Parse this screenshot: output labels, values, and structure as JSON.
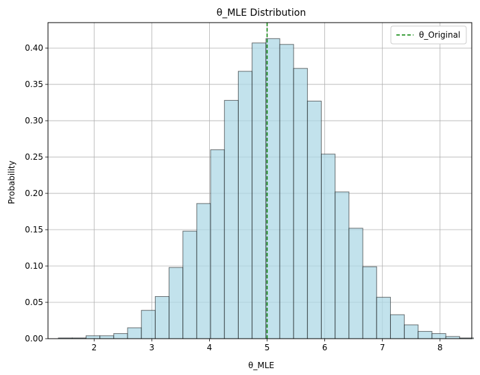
{
  "chart_data": {
    "type": "bar",
    "title": "θ_MLE Distribution",
    "xlabel": "θ_MLE",
    "ylabel": "Probability",
    "xlim": [
      1.2,
      8.55
    ],
    "ylim": [
      0,
      0.435
    ],
    "xticks": [
      2,
      3,
      4,
      5,
      6,
      7,
      8
    ],
    "yticks": [
      0.0,
      0.05,
      0.1,
      0.15,
      0.2,
      0.25,
      0.3,
      0.35,
      0.4,
      0.45
    ],
    "ytick_labels": [
      "0.00",
      "0.05",
      "0.10",
      "0.15",
      "0.20",
      "0.25",
      "0.30",
      "0.35",
      "0.40"
    ],
    "grid": true,
    "bin_width": 0.24,
    "bin_start": 1.38,
    "values": [
      0.001,
      0.001,
      0.004,
      0.004,
      0.007,
      0.015,
      0.039,
      0.058,
      0.098,
      0.148,
      0.186,
      0.26,
      0.328,
      0.368,
      0.407,
      0.413,
      0.405,
      0.372,
      0.327,
      0.254,
      0.202,
      0.152,
      0.099,
      0.057,
      0.033,
      0.019,
      0.01,
      0.007,
      0.003,
      0.001
    ],
    "bar_color": "#add8e6",
    "edge_color": "#000000",
    "reference_line": {
      "x": 5,
      "label": "θ_Original",
      "color": "#008000",
      "style": "dashed"
    },
    "legend": {
      "position": "top-right",
      "entries": [
        "θ_Original"
      ]
    }
  }
}
